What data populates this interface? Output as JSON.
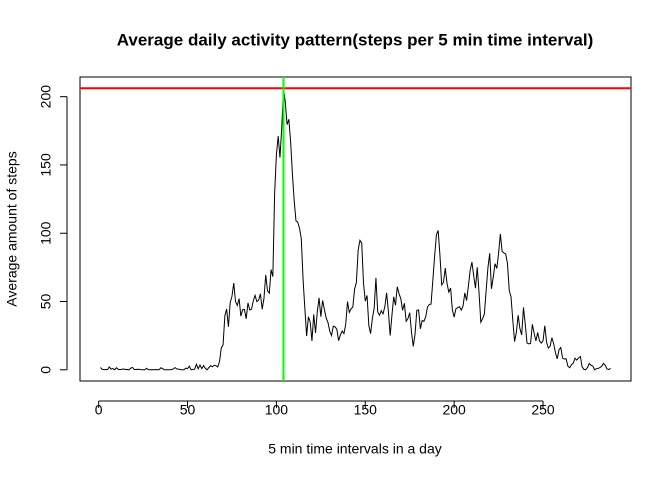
{
  "chart_data": {
    "type": "line",
    "title": "Average daily activity pattern(steps per 5 min time interval)",
    "x_label": "5 min time intervals in a day",
    "y_label": "Average amount of steps",
    "xlim": [
      -10.5,
      299.5
    ],
    "xticks": [
      0,
      50,
      100,
      150,
      200,
      250
    ],
    "ylim": [
      -8.2,
      214.4
    ],
    "yticks": [
      0,
      50,
      100,
      150,
      200
    ],
    "color": "#000000",
    "hline": {
      "value": 206.2,
      "color": "#ff0000"
    },
    "vline": {
      "value": 104,
      "color": "#00ff00"
    },
    "x": [
      1,
      2,
      3,
      4,
      5,
      6,
      7,
      8,
      9,
      10,
      11,
      12,
      13,
      14,
      15,
      16,
      17,
      18,
      19,
      20,
      21,
      22,
      23,
      24,
      25,
      26,
      27,
      28,
      29,
      30,
      31,
      32,
      33,
      34,
      35,
      36,
      37,
      38,
      39,
      40,
      41,
      42,
      43,
      44,
      45,
      46,
      47,
      48,
      49,
      50,
      51,
      52,
      53,
      54,
      55,
      56,
      57,
      58,
      59,
      60,
      61,
      62,
      63,
      64,
      65,
      66,
      67,
      68,
      69,
      70,
      71,
      72,
      73,
      74,
      75,
      76,
      77,
      78,
      79,
      80,
      81,
      82,
      83,
      84,
      85,
      86,
      87,
      88,
      89,
      90,
      91,
      92,
      93,
      94,
      95,
      96,
      97,
      98,
      99,
      100,
      101,
      102,
      103,
      104,
      105,
      106,
      107,
      108,
      109,
      110,
      111,
      112,
      113,
      114,
      115,
      116,
      117,
      118,
      119,
      120,
      121,
      122,
      123,
      124,
      125,
      126,
      127,
      128,
      129,
      130,
      131,
      132,
      133,
      134,
      135,
      136,
      137,
      138,
      139,
      140,
      141,
      142,
      143,
      144,
      145,
      146,
      147,
      148,
      149,
      150,
      151,
      152,
      153,
      154,
      155,
      156,
      157,
      158,
      159,
      160,
      161,
      162,
      163,
      164,
      165,
      166,
      167,
      168,
      169,
      170,
      171,
      172,
      173,
      174,
      175,
      176,
      177,
      178,
      179,
      180,
      181,
      182,
      183,
      184,
      185,
      186,
      187,
      188,
      189,
      190,
      191,
      192,
      193,
      194,
      195,
      196,
      197,
      198,
      199,
      200,
      201,
      202,
      203,
      204,
      205,
      206,
      207,
      208,
      209,
      210,
      211,
      212,
      213,
      214,
      215,
      216,
      217,
      218,
      219,
      220,
      221,
      222,
      223,
      224,
      225,
      226,
      227,
      228,
      229,
      230,
      231,
      232,
      233,
      234,
      235,
      236,
      237,
      238,
      239,
      240,
      241,
      242,
      243,
      244,
      245,
      246,
      247,
      248,
      249,
      250,
      251,
      252,
      253,
      254,
      255,
      256,
      257,
      258,
      259,
      260,
      261,
      262,
      263,
      264,
      265,
      266,
      267,
      268,
      269,
      270,
      271,
      272,
      273,
      274,
      275,
      276,
      277,
      278,
      279,
      280,
      281,
      282,
      283,
      284,
      285,
      286,
      287,
      288
    ],
    "values": [
      1.7,
      0.3,
      0.1,
      0.2,
      0.1,
      2.1,
      0.5,
      0.9,
      0,
      1.5,
      0.3,
      0.1,
      0.3,
      0.7,
      0.2,
      0.3,
      0,
      1.1,
      1.8,
      0.2,
      0.2,
      0.4,
      0.3,
      0,
      0,
      0,
      1.1,
      0,
      0,
      0.1,
      0,
      0.2,
      0,
      0,
      1.5,
      0.9,
      0,
      0,
      0,
      0,
      0.2,
      0.6,
      1.6,
      0.6,
      0.5,
      0.1,
      0,
      0,
      1.2,
      0.9,
      2.6,
      0,
      0.3,
      0.4,
      4.1,
      0.7,
      3.5,
      0.8,
      3.1,
      1.1,
      0,
      1.6,
      3,
      2.2,
      3.3,
      3,
      2.1,
      6.1,
      16,
      18.3,
      39.5,
      44.5,
      31.5,
      49.3,
      53.8,
      63.5,
      50,
      47.1,
      52.2,
      39.3,
      44,
      44.2,
      37.4,
      49,
      43.8,
      44.4,
      50.5,
      54.5,
      49.9,
      51,
      55.7,
      44.3,
      52.3,
      69.5,
      57.8,
      56.2,
      73.4,
      68.2,
      129.4,
      157.5,
      171.2,
      155.4,
      177.3,
      206.2,
      195.9,
      179.6,
      183.4,
      167,
      143.5,
      124,
      109.1,
      108.1,
      103.7,
      96,
      66.2,
      45.2,
      24.8,
      38.8,
      35,
      21.1,
      40.6,
      27,
      42.4,
      52.7,
      38.9,
      50.8,
      44.3,
      37.8,
      34.7,
      28.3,
      25.1,
      31.9,
      31.4,
      29.7,
      21.3,
      25.5,
      28.4,
      26.5,
      33.4,
      50,
      42,
      44.6,
      46,
      59.2,
      63.9,
      87.7,
      94.8,
      92.8,
      63.4,
      50.2,
      54.5,
      32.4,
      26.5,
      37.7,
      45.1,
      67.3,
      42.3,
      39.9,
      43.3,
      41,
      46.2,
      56.4,
      42.8,
      25.1,
      40,
      53.5,
      47.3,
      60.8,
      55.8,
      52,
      43.6,
      48.7,
      35.5,
      37.5,
      41.8,
      27.5,
      17.1,
      26.1,
      43.6,
      43.8,
      30,
      36.1,
      35.5,
      38.8,
      46,
      47.8,
      48.1,
      65.3,
      82.9,
      98.7,
      102.1,
      84,
      62.1,
      64.1,
      74.5,
      63.2,
      56.9,
      59.8,
      43.9,
      38.6,
      44.7,
      45.5,
      46.2,
      43.7,
      46.6,
      56.3,
      50.7,
      61.2,
      72.7,
      78.9,
      68.9,
      59.7,
      75.1,
      56.5,
      34.8,
      37.5,
      40.7,
      58,
      74.7,
      85.3,
      59.3,
      67.8,
      77.7,
      74.2,
      85.3,
      99.5,
      86.6,
      85.6,
      84.9,
      77.8,
      58,
      53.4,
      36.3,
      20.7,
      27.4,
      40,
      30.2,
      25.5,
      45.7,
      33.5,
      19.6,
      19,
      19.3,
      33.3,
      26.8,
      21.2,
      27.3,
      21.3,
      19.5,
      21.3,
      32.3,
      20.2,
      15.9,
      17.2,
      23.5,
      19.2,
      12.5,
      8,
      14.7,
      16.3,
      8.7,
      7.8,
      8.1,
      2.6,
      1.5,
      3.7,
      4.8,
      8.5,
      7.1,
      8.7,
      9.8,
      2.2,
      0.3,
      0.1,
      1.6,
      4.6,
      3.3,
      2.8,
      0,
      0.8,
      1,
      1.6,
      2.6,
      4.7,
      3.3,
      0.6,
      0.2,
      1.1
    ]
  }
}
